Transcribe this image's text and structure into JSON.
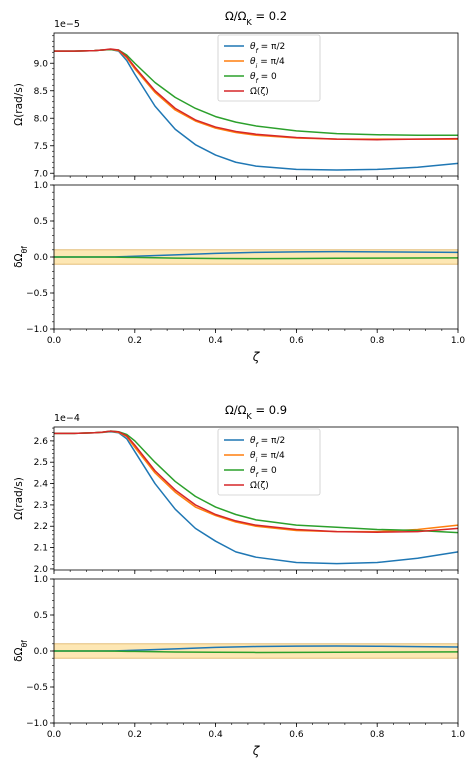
{
  "chart_data": [
    {
      "type": "line",
      "title": "Ω/Ω_K = 0.2",
      "title_base": "Ω/Ω",
      "title_sub": "K",
      "title_rest": " = 0.2",
      "offset_text": "1e−5",
      "ylabel": "Ω(rad/s)",
      "ylim": [
        6.95,
        9.55
      ],
      "yticks": [
        "7.0",
        "7.5",
        "8.0",
        "8.5",
        "9.0"
      ],
      "ytick_values": [
        7.0,
        7.5,
        8.0,
        8.5,
        9.0
      ],
      "legend_position": "top-center",
      "x": [
        0.0,
        0.05,
        0.1,
        0.12,
        0.14,
        0.16,
        0.18,
        0.2,
        0.25,
        0.3,
        0.35,
        0.4,
        0.45,
        0.5,
        0.6,
        0.7,
        0.8,
        0.9,
        1.0
      ],
      "series": [
        {
          "name": "θf = π/2",
          "color": "#1f77b4",
          "values": [
            9.22,
            9.22,
            9.23,
            9.24,
            9.25,
            9.22,
            9.05,
            8.8,
            8.22,
            7.8,
            7.52,
            7.33,
            7.2,
            7.13,
            7.07,
            7.06,
            7.07,
            7.11,
            7.18
          ]
        },
        {
          "name": "θi = π/4",
          "color": "#ff7f0e",
          "values": [
            9.22,
            9.22,
            9.23,
            9.24,
            9.25,
            9.23,
            9.1,
            8.9,
            8.47,
            8.15,
            7.95,
            7.82,
            7.74,
            7.69,
            7.64,
            7.62,
            7.62,
            7.62,
            7.62
          ]
        },
        {
          "name": "θf = 0",
          "color": "#2ca02c",
          "values": [
            9.22,
            9.22,
            9.23,
            9.24,
            9.25,
            9.24,
            9.15,
            9.0,
            8.65,
            8.38,
            8.18,
            8.03,
            7.93,
            7.86,
            7.77,
            7.72,
            7.7,
            7.69,
            7.69
          ]
        },
        {
          "name": "Ω̄(ζ)",
          "color": "#d62728",
          "values": [
            9.22,
            9.22,
            9.23,
            9.24,
            9.26,
            9.24,
            9.12,
            8.93,
            8.5,
            8.18,
            7.97,
            7.84,
            7.76,
            7.71,
            7.65,
            7.62,
            7.61,
            7.62,
            7.63
          ]
        }
      ],
      "legend": [
        {
          "main": "θ",
          "sub": "f",
          "rest": " = π/2",
          "color": "#1f77b4"
        },
        {
          "main": "θ",
          "sub": "i",
          "rest": " = π/4",
          "color": "#ff7f0e"
        },
        {
          "main": "θ",
          "sub": "f",
          "rest": " = 0",
          "color": "#2ca02c"
        },
        {
          "main": "Ω̄(ζ)",
          "sub": "",
          "rest": "",
          "color": "#d62728"
        }
      ]
    },
    {
      "type": "line",
      "ylabel": "δΩθf",
      "ylabel_main": "δΩ",
      "ylabel_sub": "θf",
      "xlabel": "ζ",
      "ylim": [
        -1.0,
        1.0
      ],
      "yticks": [
        "−1.0",
        "−0.5",
        "0.0",
        "0.5",
        "1.0"
      ],
      "ytick_values": [
        -1.0,
        -0.5,
        0.0,
        0.5,
        1.0
      ],
      "xlim": [
        0.0,
        1.0
      ],
      "xticks": [
        "0.0",
        "0.2",
        "0.4",
        "0.6",
        "0.8",
        "1.0"
      ],
      "xtick_values": [
        0.0,
        0.2,
        0.4,
        0.6,
        0.8,
        1.0
      ],
      "band": [
        -0.1,
        0.1
      ],
      "band_color": "#fde3a7",
      "x": [
        0.0,
        0.1,
        0.15,
        0.2,
        0.3,
        0.4,
        0.5,
        0.6,
        0.7,
        0.8,
        0.9,
        1.0
      ],
      "series": [
        {
          "color": "#1f77b4",
          "values": [
            0.0,
            0.0,
            0.002,
            0.01,
            0.03,
            0.05,
            0.065,
            0.072,
            0.075,
            0.072,
            0.068,
            0.065
          ]
        },
        {
          "color": "#2ca02c",
          "values": [
            0.0,
            0.0,
            -0.002,
            -0.006,
            -0.015,
            -0.02,
            -0.022,
            -0.02,
            -0.018,
            -0.016,
            -0.014,
            -0.012
          ]
        }
      ]
    },
    {
      "type": "line",
      "title": "Ω/Ω_K = 0.9",
      "title_base": "Ω/Ω",
      "title_sub": "K",
      "title_rest": " = 0.9",
      "offset_text": "1e−4",
      "ylabel": "Ω(rad/s)",
      "ylim": [
        1.995,
        2.665
      ],
      "yticks": [
        "2.0",
        "2.1",
        "2.2",
        "2.3",
        "2.4",
        "2.5",
        "2.6"
      ],
      "ytick_values": [
        2.0,
        2.1,
        2.2,
        2.3,
        2.4,
        2.5,
        2.6
      ],
      "legend_position": "top-center",
      "x": [
        0.0,
        0.05,
        0.1,
        0.12,
        0.14,
        0.16,
        0.18,
        0.2,
        0.25,
        0.3,
        0.35,
        0.4,
        0.45,
        0.5,
        0.6,
        0.7,
        0.8,
        0.9,
        1.0
      ],
      "series": [
        {
          "name": "θf = π/2",
          "color": "#1f77b4",
          "values": [
            2.635,
            2.635,
            2.638,
            2.64,
            2.643,
            2.638,
            2.61,
            2.55,
            2.4,
            2.28,
            2.19,
            2.13,
            2.08,
            2.055,
            2.03,
            2.025,
            2.03,
            2.05,
            2.08
          ]
        },
        {
          "name": "θi = π/4",
          "color": "#ff7f0e",
          "values": [
            2.635,
            2.635,
            2.638,
            2.64,
            2.645,
            2.64,
            2.62,
            2.57,
            2.45,
            2.36,
            2.29,
            2.25,
            2.22,
            2.2,
            2.18,
            2.175,
            2.175,
            2.185,
            2.205
          ]
        },
        {
          "name": "θf = 0",
          "color": "#2ca02c",
          "values": [
            2.635,
            2.635,
            2.638,
            2.641,
            2.646,
            2.643,
            2.63,
            2.6,
            2.5,
            2.41,
            2.34,
            2.29,
            2.255,
            2.23,
            2.205,
            2.195,
            2.185,
            2.18,
            2.17
          ]
        },
        {
          "name": "Ω̄(ζ)",
          "color": "#d62728",
          "values": [
            2.635,
            2.635,
            2.638,
            2.641,
            2.646,
            2.642,
            2.624,
            2.58,
            2.46,
            2.37,
            2.3,
            2.255,
            2.225,
            2.205,
            2.185,
            2.175,
            2.172,
            2.175,
            2.19
          ]
        }
      ],
      "legend": [
        {
          "main": "θ",
          "sub": "f",
          "rest": " = π/2",
          "color": "#1f77b4"
        },
        {
          "main": "θ",
          "sub": "i",
          "rest": " = π/4",
          "color": "#ff7f0e"
        },
        {
          "main": "θ",
          "sub": "f",
          "rest": " = 0",
          "color": "#2ca02c"
        },
        {
          "main": "Ω̄(ζ)",
          "sub": "",
          "rest": "",
          "color": "#d62728"
        }
      ]
    },
    {
      "type": "line",
      "ylabel": "δΩθf",
      "ylabel_main": "δΩ",
      "ylabel_sub": "θf",
      "xlabel": "ζ",
      "ylim": [
        -1.0,
        1.0
      ],
      "yticks": [
        "−1.0",
        "−0.5",
        "0.0",
        "0.5",
        "1.0"
      ],
      "ytick_values": [
        -1.0,
        -0.5,
        0.0,
        0.5,
        1.0
      ],
      "xlim": [
        0.0,
        1.0
      ],
      "xticks": [
        "0.0",
        "0.2",
        "0.4",
        "0.6",
        "0.8",
        "1.0"
      ],
      "xtick_values": [
        0.0,
        0.2,
        0.4,
        0.6,
        0.8,
        1.0
      ],
      "band": [
        -0.1,
        0.1
      ],
      "band_color": "#fde3a7",
      "x": [
        0.0,
        0.1,
        0.15,
        0.2,
        0.3,
        0.4,
        0.5,
        0.6,
        0.7,
        0.8,
        0.9,
        1.0
      ],
      "series": [
        {
          "color": "#1f77b4",
          "values": [
            0.0,
            0.0,
            0.002,
            0.01,
            0.03,
            0.05,
            0.062,
            0.068,
            0.07,
            0.066,
            0.06,
            0.055
          ]
        },
        {
          "color": "#2ca02c",
          "values": [
            0.0,
            0.0,
            -0.002,
            -0.006,
            -0.014,
            -0.018,
            -0.02,
            -0.019,
            -0.017,
            -0.015,
            -0.013,
            -0.012
          ]
        }
      ]
    }
  ]
}
